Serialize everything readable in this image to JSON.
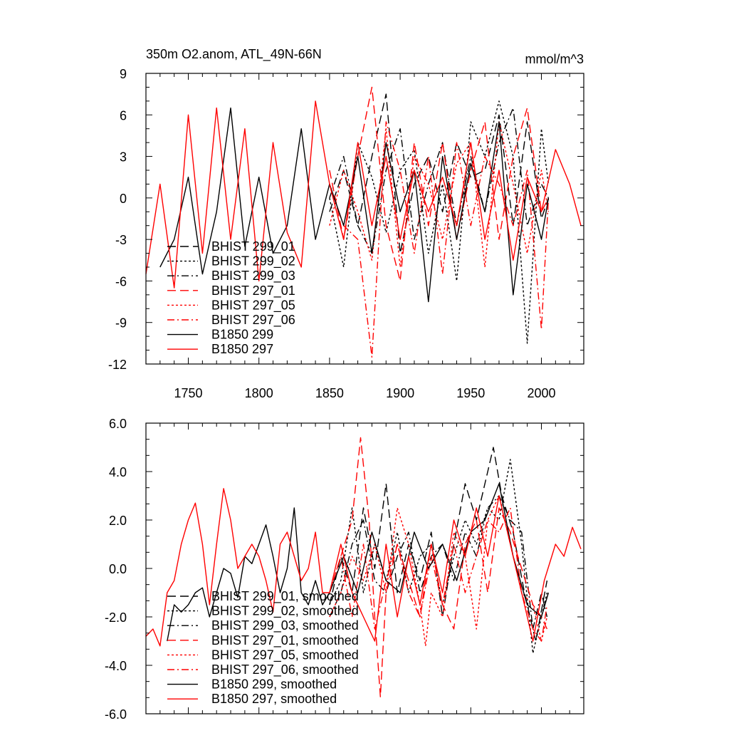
{
  "chart_data": [
    {
      "type": "line",
      "title": "350m O2.anom, ATL_49N-66N",
      "units": "mmol/m^3",
      "xlim": [
        1720,
        2030
      ],
      "ylim": [
        -12,
        9
      ],
      "yticks": [
        9,
        6,
        3,
        0,
        -3,
        -6,
        -9,
        -12
      ],
      "ytick_labels": [
        "9",
        "6",
        "3",
        "0",
        "-3",
        "-6",
        "-9",
        "-12"
      ],
      "xticks": [
        1750,
        1800,
        1850,
        1900,
        1950,
        2000
      ],
      "xtick_labels": [
        "1750",
        "1800",
        "1850",
        "1900",
        "1950",
        "2000"
      ],
      "legend": [
        "BHIST 299_01",
        "BHIST 299_02",
        "BHIST 299_03",
        "BHIST 297_01",
        "BHIST 297_05",
        "BHIST 297_06",
        "B1850 299",
        "B1850 297"
      ],
      "series": [
        {
          "name": "BHIST 299_01",
          "color": "#000000",
          "dash": "12,6",
          "x": [
            1850,
            1860,
            1870,
            1880,
            1890,
            1900,
            1910,
            1920,
            1930,
            1940,
            1950,
            1960,
            1970,
            1980,
            1990,
            2000,
            2005
          ],
          "values": [
            -1.0,
            2.0,
            -2.0,
            3.0,
            7.5,
            -4.0,
            1.0,
            3.0,
            -1.0,
            4.0,
            1.5,
            2.0,
            6.0,
            -2.0,
            5.5,
            -1.5,
            0.0
          ]
        },
        {
          "name": "BHIST 299_02",
          "color": "#000000",
          "dash": "3,3",
          "x": [
            1850,
            1860,
            1870,
            1880,
            1890,
            1900,
            1910,
            1920,
            1930,
            1940,
            1950,
            1960,
            1970,
            1980,
            1990,
            2000,
            2005
          ],
          "values": [
            0.0,
            -5.0,
            4.0,
            1.5,
            -2.5,
            2.0,
            3.5,
            -4.0,
            1.0,
            -6.0,
            5.5,
            3.0,
            7.0,
            3.0,
            -10.5,
            5.0,
            1.0
          ]
        },
        {
          "name": "BHIST 299_03",
          "color": "#000000",
          "dash": "10,4,2,4",
          "x": [
            1850,
            1860,
            1870,
            1880,
            1890,
            1900,
            1910,
            1920,
            1930,
            1940,
            1950,
            1960,
            1970,
            1980,
            1990,
            2000,
            2005
          ],
          "values": [
            0.0,
            3.0,
            -2.0,
            -4.0,
            2.0,
            5.0,
            -3.0,
            1.0,
            4.0,
            -2.0,
            3.0,
            -1.0,
            4.0,
            6.5,
            -2.0,
            1.0,
            0.0
          ]
        },
        {
          "name": "BHIST 297_01",
          "color": "#ff0000",
          "dash": "12,6",
          "x": [
            1850,
            1860,
            1870,
            1880,
            1890,
            1900,
            1910,
            1920,
            1930,
            1940,
            1950,
            1960,
            1970,
            1980,
            1990,
            2000,
            2005
          ],
          "values": [
            2.0,
            -3.0,
            3.0,
            8.0,
            -2.0,
            -6.0,
            4.0,
            -2.0,
            4.0,
            -3.0,
            2.0,
            5.5,
            -3.0,
            3.0,
            6.5,
            -1.0,
            0.0
          ]
        },
        {
          "name": "BHIST 297_05",
          "color": "#ff0000",
          "dash": "3,3",
          "x": [
            1850,
            1860,
            1870,
            1880,
            1890,
            1900,
            1910,
            1920,
            1930,
            1940,
            1950,
            1960,
            1970,
            1980,
            1990,
            2000,
            2005
          ],
          "values": [
            -2.0,
            2.0,
            -1.0,
            -4.5,
            5.0,
            -5.0,
            3.0,
            1.0,
            -3.0,
            2.5,
            4.0,
            -5.0,
            5.5,
            1.0,
            -4.0,
            2.0,
            -1.0
          ]
        },
        {
          "name": "BHIST 297_06",
          "color": "#ff0000",
          "dash": "10,4,2,4",
          "x": [
            1850,
            1860,
            1870,
            1880,
            1890,
            1900,
            1910,
            1920,
            1930,
            1940,
            1950,
            1960,
            1970,
            1980,
            1990,
            2000,
            2005
          ],
          "values": [
            1.0,
            -2.0,
            -3.0,
            -11.5,
            5.5,
            2.0,
            -4.0,
            3.0,
            -5.5,
            4.0,
            -2.0,
            3.0,
            1.0,
            -2.0,
            2.0,
            -9.5,
            0.0
          ]
        },
        {
          "name": "B1850 299",
          "color": "#000000",
          "dash": "",
          "x": [
            1730,
            1740,
            1750,
            1760,
            1770,
            1780,
            1790,
            1800,
            1810,
            1820,
            1830,
            1840,
            1850,
            1860,
            1870,
            1880,
            1890,
            1900,
            1910,
            1920,
            1930,
            1940,
            1950,
            1960,
            1970,
            1980,
            1990,
            2000,
            2005
          ],
          "values": [
            -5.0,
            -3.0,
            1.5,
            -5.5,
            -1.0,
            6.5,
            -3.5,
            1.5,
            -4.0,
            -2.0,
            5.0,
            -3.0,
            1.0,
            -2.0,
            3.0,
            -4.0,
            4.0,
            -1.0,
            2.0,
            -7.5,
            3.0,
            -3.0,
            2.5,
            -1.0,
            5.5,
            -7.0,
            1.0,
            -3.0,
            0.0
          ]
        },
        {
          "name": "B1850 297",
          "color": "#ff0000",
          "dash": "",
          "x": [
            1720,
            1730,
            1740,
            1750,
            1760,
            1770,
            1780,
            1790,
            1800,
            1810,
            1820,
            1830,
            1840,
            1850,
            1860,
            1870,
            1880,
            1890,
            1900,
            1910,
            1920,
            1930,
            1940,
            1950,
            1960,
            1970,
            1980,
            1990,
            2000,
            2010,
            2020,
            2028
          ],
          "values": [
            -5.5,
            1.0,
            -6.5,
            6.0,
            -4.0,
            6.5,
            -3.0,
            5.0,
            -6.0,
            4.0,
            -2.5,
            -5.0,
            7.0,
            1.0,
            -3.0,
            4.0,
            -2.0,
            3.0,
            -3.0,
            2.0,
            -1.0,
            1.5,
            -2.0,
            4.0,
            -3.0,
            2.0,
            -4.5,
            1.5,
            -1.0,
            3.5,
            1.0,
            -2.0
          ]
        }
      ]
    },
    {
      "type": "line",
      "ylim": [
        -6,
        6
      ],
      "xlim": [
        1720,
        2030
      ],
      "yticks": [
        6,
        4,
        2,
        0,
        -2,
        -4,
        -6
      ],
      "ytick_labels": [
        "6.0",
        "4.0",
        "2.0",
        "0.0",
        "-2.0",
        "-4.0",
        "-6.0"
      ],
      "xticks": [
        1750,
        1800,
        1850,
        1900,
        1950,
        2000
      ],
      "legend": [
        "BHIST 299_01, smoothed",
        "BHIST 299_02, smoothed",
        "BHIST 299_03, smoothed",
        "BHIST 297_01, smoothed",
        "BHIST 297_05, smoothed",
        "BHIST 297_06, smoothed",
        "B1850 299, smoothed",
        "B1850 297, smoothed"
      ],
      "series": [
        {
          "name": "BHIST 299_01, smoothed",
          "color": "#000000",
          "dash": "12,6",
          "x": [
            1850,
            1858,
            1866,
            1874,
            1882,
            1890,
            1898,
            1906,
            1914,
            1922,
            1930,
            1938,
            1946,
            1954,
            1962,
            1966,
            1972,
            1980,
            1988,
            1996,
            2004
          ],
          "values": [
            -1.5,
            0.5,
            -1.0,
            2.5,
            0.0,
            3.5,
            -1.0,
            1.0,
            -0.5,
            1.5,
            -2.0,
            1.0,
            3.5,
            2.0,
            4.0,
            5.0,
            3.0,
            1.5,
            -1.0,
            -3.0,
            -0.5
          ]
        },
        {
          "name": "BHIST 299_02, smoothed",
          "color": "#000000",
          "dash": "3,3",
          "x": [
            1850,
            1858,
            1866,
            1874,
            1882,
            1890,
            1898,
            1906,
            1914,
            1922,
            1930,
            1938,
            1946,
            1954,
            1962,
            1970,
            1978,
            1986,
            1994,
            2000,
            2004
          ],
          "values": [
            -1.5,
            -0.5,
            2.5,
            -1.0,
            1.0,
            -0.5,
            1.5,
            -1.0,
            0.5,
            1.0,
            -1.5,
            0.5,
            2.0,
            1.0,
            2.5,
            2.0,
            4.5,
            1.0,
            -3.5,
            -2.0,
            -1.0
          ]
        },
        {
          "name": "BHIST 299_03, smoothed",
          "color": "#000000",
          "dash": "10,4,2,4",
          "x": [
            1850,
            1858,
            1866,
            1874,
            1882,
            1890,
            1898,
            1906,
            1914,
            1922,
            1930,
            1938,
            1946,
            1954,
            1962,
            1970,
            1978,
            1986,
            1994,
            2000,
            2004
          ],
          "values": [
            -2.0,
            -1.0,
            1.0,
            2.0,
            -0.5,
            -1.0,
            0.5,
            1.5,
            -1.0,
            0.5,
            1.0,
            -0.5,
            1.5,
            0.5,
            2.5,
            3.0,
            2.0,
            1.5,
            -2.5,
            -1.0,
            -2.0
          ]
        },
        {
          "name": "BHIST 297_01, smoothed",
          "color": "#ff0000",
          "dash": "12,6",
          "x": [
            1850,
            1858,
            1866,
            1872,
            1878,
            1882,
            1886,
            1890,
            1898,
            1906,
            1914,
            1922,
            1930,
            1938,
            1946,
            1954,
            1962,
            1970,
            1978,
            1986,
            1994,
            2000,
            2004
          ],
          "values": [
            -1.0,
            0.5,
            2.0,
            5.4,
            2.0,
            -2.0,
            -5.3,
            -1.0,
            1.0,
            -0.5,
            -2.0,
            1.0,
            -1.5,
            -2.5,
            1.0,
            2.0,
            -1.0,
            2.5,
            1.5,
            0.0,
            -1.5,
            -2.0,
            -2.5
          ]
        },
        {
          "name": "BHIST 297_05, smoothed",
          "color": "#ff0000",
          "dash": "3,3",
          "x": [
            1850,
            1858,
            1866,
            1874,
            1882,
            1890,
            1898,
            1906,
            1914,
            1918,
            1922,
            1930,
            1938,
            1946,
            1954,
            1962,
            1970,
            1978,
            1986,
            1994,
            2000,
            2004
          ],
          "values": [
            -2.0,
            -1.0,
            0.5,
            -0.5,
            1.0,
            -1.0,
            2.5,
            1.0,
            -1.5,
            -3.2,
            -1.0,
            -2.0,
            1.5,
            0.5,
            -2.5,
            2.0,
            3.0,
            1.0,
            -1.0,
            -1.5,
            -3.0,
            -2.0
          ]
        },
        {
          "name": "BHIST 297_06, smoothed",
          "color": "#ff0000",
          "dash": "10,4,2,4",
          "x": [
            1850,
            1858,
            1866,
            1874,
            1882,
            1890,
            1898,
            1906,
            1914,
            1922,
            1930,
            1938,
            1946,
            1954,
            1962,
            1970,
            1978,
            1986,
            1994,
            2000,
            2004
          ],
          "values": [
            -1.0,
            0.5,
            -2.0,
            1.0,
            -2.5,
            -0.5,
            1.0,
            -1.0,
            -2.0,
            0.5,
            -1.5,
            1.0,
            -1.0,
            0.5,
            2.0,
            1.5,
            2.5,
            -1.0,
            -2.5,
            -3.0,
            -1.5
          ]
        },
        {
          "name": "B1850 299, smoothed",
          "color": "#000000",
          "dash": "",
          "x": [
            1735,
            1740,
            1745,
            1750,
            1755,
            1760,
            1765,
            1770,
            1775,
            1780,
            1785,
            1790,
            1795,
            1800,
            1805,
            1810,
            1815,
            1820,
            1825,
            1830,
            1835,
            1840,
            1845,
            1850,
            1860,
            1870,
            1880,
            1890,
            1900,
            1910,
            1920,
            1930,
            1940,
            1950,
            1960,
            1970,
            1980,
            1990,
            2000,
            2005
          ],
          "values": [
            -3.0,
            -1.5,
            -1.8,
            -1.5,
            -1.0,
            -0.8,
            -2.0,
            -1.0,
            0.0,
            -0.2,
            -1.2,
            0.5,
            0.2,
            1.0,
            1.8,
            0.5,
            -1.0,
            0.0,
            2.5,
            -1.0,
            -1.5,
            -0.5,
            -1.5,
            -1.0,
            0.5,
            -1.0,
            1.5,
            -0.5,
            -1.0,
            1.5,
            0.0,
            1.0,
            -0.5,
            1.5,
            2.0,
            3.5,
            0.5,
            -1.5,
            -2.0,
            -1.0
          ]
        },
        {
          "name": "B1850 297, smoothed",
          "color": "#ff0000",
          "dash": "",
          "x": [
            1720,
            1725,
            1730,
            1735,
            1740,
            1745,
            1750,
            1755,
            1760,
            1765,
            1770,
            1775,
            1780,
            1785,
            1790,
            1795,
            1800,
            1805,
            1810,
            1815,
            1820,
            1825,
            1830,
            1835,
            1840,
            1845,
            1850,
            1858,
            1866,
            1874,
            1882,
            1890,
            1898,
            1906,
            1914,
            1922,
            1930,
            1938,
            1946,
            1954,
            1962,
            1970,
            1978,
            1986,
            1994,
            2002,
            2010,
            2016,
            2022,
            2028
          ],
          "values": [
            -2.8,
            -2.5,
            -3.2,
            -1.0,
            -0.5,
            1.0,
            2.0,
            2.7,
            1.0,
            -1.5,
            1.0,
            3.3,
            2.0,
            0.0,
            0.5,
            1.0,
            0.5,
            -0.5,
            -1.8,
            1.0,
            1.5,
            0.5,
            -0.5,
            0.0,
            1.5,
            -1.0,
            -1.0,
            1.0,
            -1.0,
            -2.0,
            -3.0,
            1.0,
            -2.0,
            0.5,
            -1.5,
            1.0,
            -1.0,
            2.0,
            0.5,
            2.5,
            0.5,
            3.0,
            1.0,
            -1.0,
            -3.0,
            -0.5,
            1.0,
            0.5,
            1.7,
            0.8
          ]
        }
      ]
    }
  ]
}
